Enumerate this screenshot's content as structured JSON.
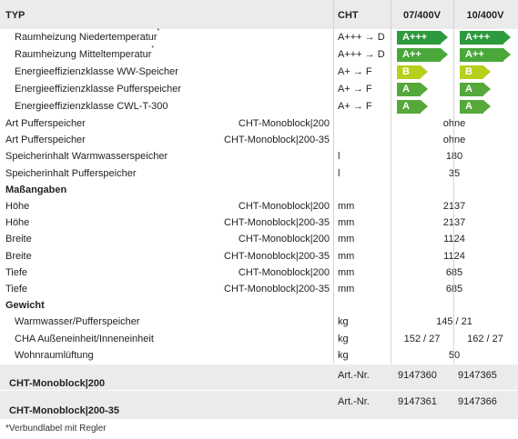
{
  "header": {
    "typ": "TYP",
    "cht": "CHT",
    "v1": "07/400V",
    "v2": "10/400V"
  },
  "energy_rows": [
    {
      "label": "Raumheizung Niedertemperatur",
      "star": "*",
      "range": "A+++ → D",
      "l1": "A+++",
      "l2": "A+++",
      "c1": "#2e9a3e",
      "c2": "#2e9a3e"
    },
    {
      "label": "Raumheizung Mitteltemperatur",
      "star": "*",
      "range": "A+++ → D",
      "l1": "A++",
      "l2": "A++",
      "c1": "#4aa83a",
      "c2": "#4aa83a"
    },
    {
      "label": "Energieeffizienzklasse WW-Speicher",
      "star": "",
      "range": "A+ → F",
      "l1": "B",
      "l2": "B",
      "c1": "#b8cf1c",
      "c2": "#b8cf1c"
    },
    {
      "label": "Energieeffizienzklasse Pufferspeicher",
      "star": "",
      "range": "A+ → F",
      "l1": "A",
      "l2": "A",
      "c1": "#55a83a",
      "c2": "#55a83a"
    },
    {
      "label": "Energieeffizienzklasse CWL-T-300",
      "star": "",
      "range": "A+ → F",
      "l1": "A",
      "l2": "A",
      "c1": "#55a83a",
      "c2": "#55a83a"
    }
  ],
  "rows": [
    {
      "label": "Art Pufferspeicher",
      "model": "CHT-Monoblock|200",
      "unit": "",
      "value": "ohne"
    },
    {
      "label": "Art Pufferspeicher",
      "model": "CHT-Monoblock|200-35",
      "unit": "",
      "value": "ohne"
    },
    {
      "label": "Speicherinhalt Warmwasserspeicher",
      "model": "",
      "unit": "l",
      "value": "180"
    },
    {
      "label": "Speicherinhalt Pufferspeicher",
      "model": "",
      "unit": "l",
      "value": "35"
    },
    {
      "section": "Maßangaben"
    },
    {
      "label": "Höhe",
      "model": "CHT-Monoblock|200",
      "unit": "mm",
      "value": "2137"
    },
    {
      "label": "Höhe",
      "model": "CHT-Monoblock|200-35",
      "unit": "mm",
      "value": "2137"
    },
    {
      "label": "Breite",
      "model": "CHT-Monoblock|200",
      "unit": "mm",
      "value": "1124"
    },
    {
      "label": "Breite",
      "model": "CHT-Monoblock|200-35",
      "unit": "mm",
      "value": "1124"
    },
    {
      "label": "Tiefe",
      "model": "CHT-Monoblock|200",
      "unit": "mm",
      "value": "685"
    },
    {
      "label": "Tiefe",
      "model": "CHT-Monoblock|200-35",
      "unit": "mm",
      "value": "685"
    },
    {
      "section": "Gewicht"
    },
    {
      "label": "Warmwasser/Pufferspeicher",
      "indent": true,
      "unit": "kg",
      "value": "145 / 21"
    },
    {
      "label": "CHA Außeneinheit/Inneneinheit",
      "indent": true,
      "unit": "kg",
      "v1": "152 / 27",
      "v2": "162 / 27"
    },
    {
      "label": "Wohnraumlüftung",
      "indent": true,
      "unit": "kg",
      "value": "50"
    }
  ],
  "articles": [
    {
      "name": "CHT-Monoblock|200",
      "label": "Art.-Nr.",
      "v1": "9147360",
      "v2": "9147365"
    },
    {
      "name": "CHT-Monoblock|200-35",
      "label": "Art.-Nr.",
      "v1": "9147361",
      "v2": "9147366"
    }
  ],
  "footnote": "*Verbundlabel mit Regler"
}
